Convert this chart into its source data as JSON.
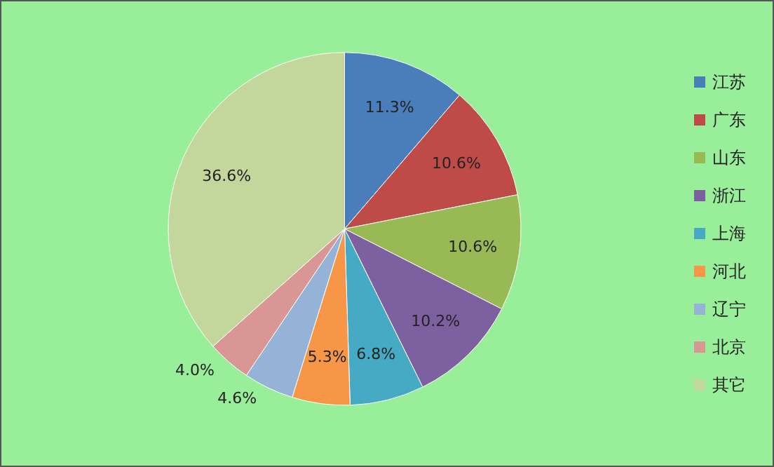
{
  "chart_data": {
    "type": "pie",
    "categories": [
      "江苏",
      "广东",
      "山东",
      "浙江",
      "上海",
      "河北",
      "辽宁",
      "北京",
      "其它"
    ],
    "values": [
      11.3,
      10.6,
      10.6,
      10.2,
      6.8,
      5.3,
      4.6,
      4.0,
      36.6
    ],
    "value_labels": [
      "11.3%",
      "10.6%",
      "10.6%",
      "10.2%",
      "6.8%",
      "5.3%",
      "4.6%",
      "4.0%",
      "36.6%"
    ],
    "colors": [
      "#4a7ebb",
      "#be4b48",
      "#98b954",
      "#7d60a0",
      "#46aac5",
      "#f79646",
      "#95b3d7",
      "#d99694",
      "#c3d69b"
    ],
    "legend": "right"
  }
}
